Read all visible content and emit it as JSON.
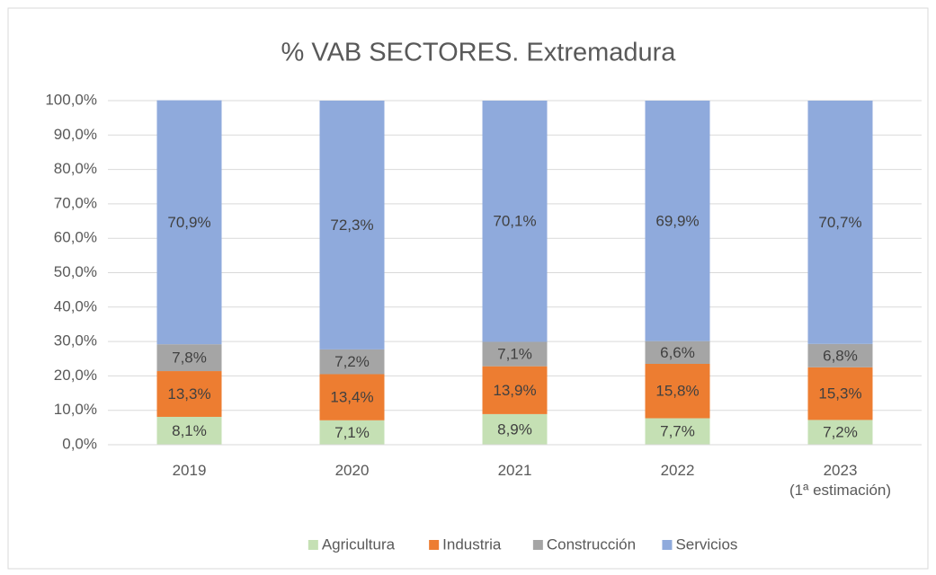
{
  "chart_data": {
    "type": "stacked_bar",
    "title": "% VAB SECTORES. Extremadura",
    "categories": [
      "2019",
      "2020",
      "2021",
      "2022",
      "2023\n(1ª estimación)"
    ],
    "series": [
      {
        "name": "Agricultura",
        "color": "#c5e0b4",
        "values": [
          8.1,
          7.1,
          8.9,
          7.7,
          7.2
        ],
        "value_labels": [
          "8,1%",
          "7,1%",
          "8,9%",
          "7,7%",
          "7,2%"
        ]
      },
      {
        "name": "Industria",
        "color": "#ed7d31",
        "values": [
          13.3,
          13.4,
          13.9,
          15.8,
          15.3
        ],
        "value_labels": [
          "13,3%",
          "13,4%",
          "13,9%",
          "15,8%",
          "15,3%"
        ]
      },
      {
        "name": "Construcción",
        "color": "#a5a5a5",
        "values": [
          7.8,
          7.2,
          7.1,
          6.6,
          6.8
        ],
        "value_labels": [
          "7,8%",
          "7,2%",
          "7,1%",
          "6,6%",
          "6,8%"
        ]
      },
      {
        "name": "Servicios",
        "color": "#8faadc",
        "values": [
          70.9,
          72.3,
          70.1,
          69.9,
          70.7
        ],
        "value_labels": [
          "70,9%",
          "72,3%",
          "70,1%",
          "69,9%",
          "70,7%"
        ]
      }
    ],
    "ylim": [
      0,
      100
    ],
    "yticks": [
      {
        "value": 0,
        "label": "0,0%"
      },
      {
        "value": 10,
        "label": "10,0%"
      },
      {
        "value": 20,
        "label": "20,0%"
      },
      {
        "value": 30,
        "label": "30,0%"
      },
      {
        "value": 40,
        "label": "40,0%"
      },
      {
        "value": 50,
        "label": "50,0%"
      },
      {
        "value": 60,
        "label": "60,0%"
      },
      {
        "value": 70,
        "label": "70,0%"
      },
      {
        "value": 80,
        "label": "80,0%"
      },
      {
        "value": 90,
        "label": "90,0%"
      },
      {
        "value": 100,
        "label": "100,0%"
      }
    ],
    "grid": true,
    "legend": "bottom"
  }
}
